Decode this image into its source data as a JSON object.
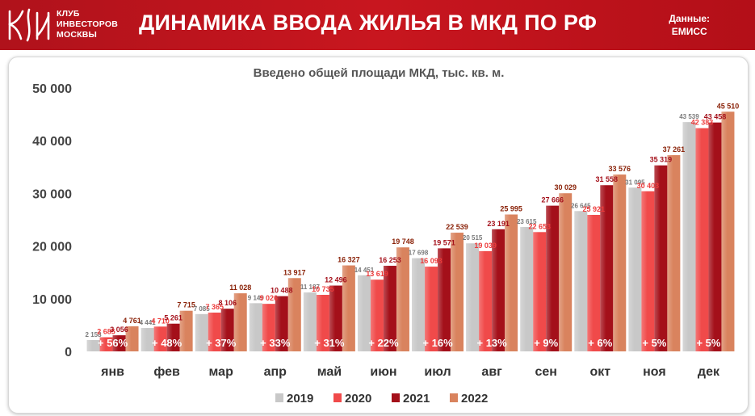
{
  "header": {
    "org_lines": [
      "КЛУБ",
      "ИНВЕСТОРОВ",
      "МОСКВЫ"
    ],
    "title": "ДИНАМИКА ВВОДА ЖИЛЬЯ В МКД ПО РФ",
    "source_label": "Данные:",
    "source_name": "ЕМИСС"
  },
  "chart_data": {
    "type": "bar",
    "title": "Введено общей площади МКД, тыс. кв. м.",
    "categories": [
      "янв",
      "фев",
      "мар",
      "апр",
      "май",
      "июн",
      "июл",
      "авг",
      "сен",
      "окт",
      "ноя",
      "дек"
    ],
    "ylim": [
      0,
      50000
    ],
    "yticks": [
      "0",
      "10 000",
      "20 000",
      "30 000",
      "40 000",
      "50 000"
    ],
    "grid": false,
    "legend": "bottom",
    "series": [
      {
        "name": "2019",
        "color": "#c8c8c8",
        "label_color": "#7a7a7a",
        "values": [
          2158,
          4441,
          7085,
          9149,
          11187,
          14451,
          17698,
          20515,
          23615,
          26645,
          31095,
          43539
        ],
        "labels": [
          "2 158",
          "4 441",
          "7 085",
          "9 149",
          "11 187",
          "14 451",
          "17 698",
          "20 515",
          "23 615",
          "26 645",
          "31 095",
          "43 539"
        ]
      },
      {
        "name": "2020",
        "color": "#f04a4a",
        "label_color": "#ee3b3b",
        "values": [
          2685,
          4710,
          7365,
          9026,
          10735,
          13619,
          16093,
          19039,
          22653,
          25921,
          30403,
          42383
        ],
        "labels": [
          "2 685",
          "4 710",
          "7 365",
          "9 026",
          "10 735",
          "13 619",
          "16 093",
          "19 039",
          "22 653",
          "25 921",
          "30 403",
          "42 383"
        ]
      },
      {
        "name": "2021",
        "color": "#a4101a",
        "label_color": "#a4101a",
        "values": [
          3056,
          5261,
          8106,
          10488,
          12496,
          16253,
          19571,
          23191,
          27666,
          31558,
          35319,
          43458
        ],
        "labels": [
          "3 056",
          "5 261",
          "8 106",
          "10 488",
          "12 496",
          "16 253",
          "19 571",
          "23 191",
          "27 666",
          "31 558",
          "35 319",
          "43 458"
        ]
      },
      {
        "name": "2022",
        "color": "#d9835e",
        "label_color": "#8a2208",
        "values": [
          4761,
          7715,
          11028,
          13917,
          16327,
          19748,
          22539,
          25995,
          30029,
          33576,
          37261,
          45510
        ],
        "labels": [
          "4 761",
          "7 715",
          "11 028",
          "13 917",
          "16 327",
          "19 748",
          "22 539",
          "25 995",
          "30 029",
          "33 576",
          "37 261",
          "45 510"
        ]
      }
    ],
    "growth": [
      "+ 56%",
      "+ 48%",
      "+ 37%",
      "+ 33%",
      "+ 31%",
      "+ 22%",
      "+ 16%",
      "+ 13%",
      "+ 9%",
      "+ 6%",
      "+ 5%",
      "+ 5%"
    ]
  }
}
